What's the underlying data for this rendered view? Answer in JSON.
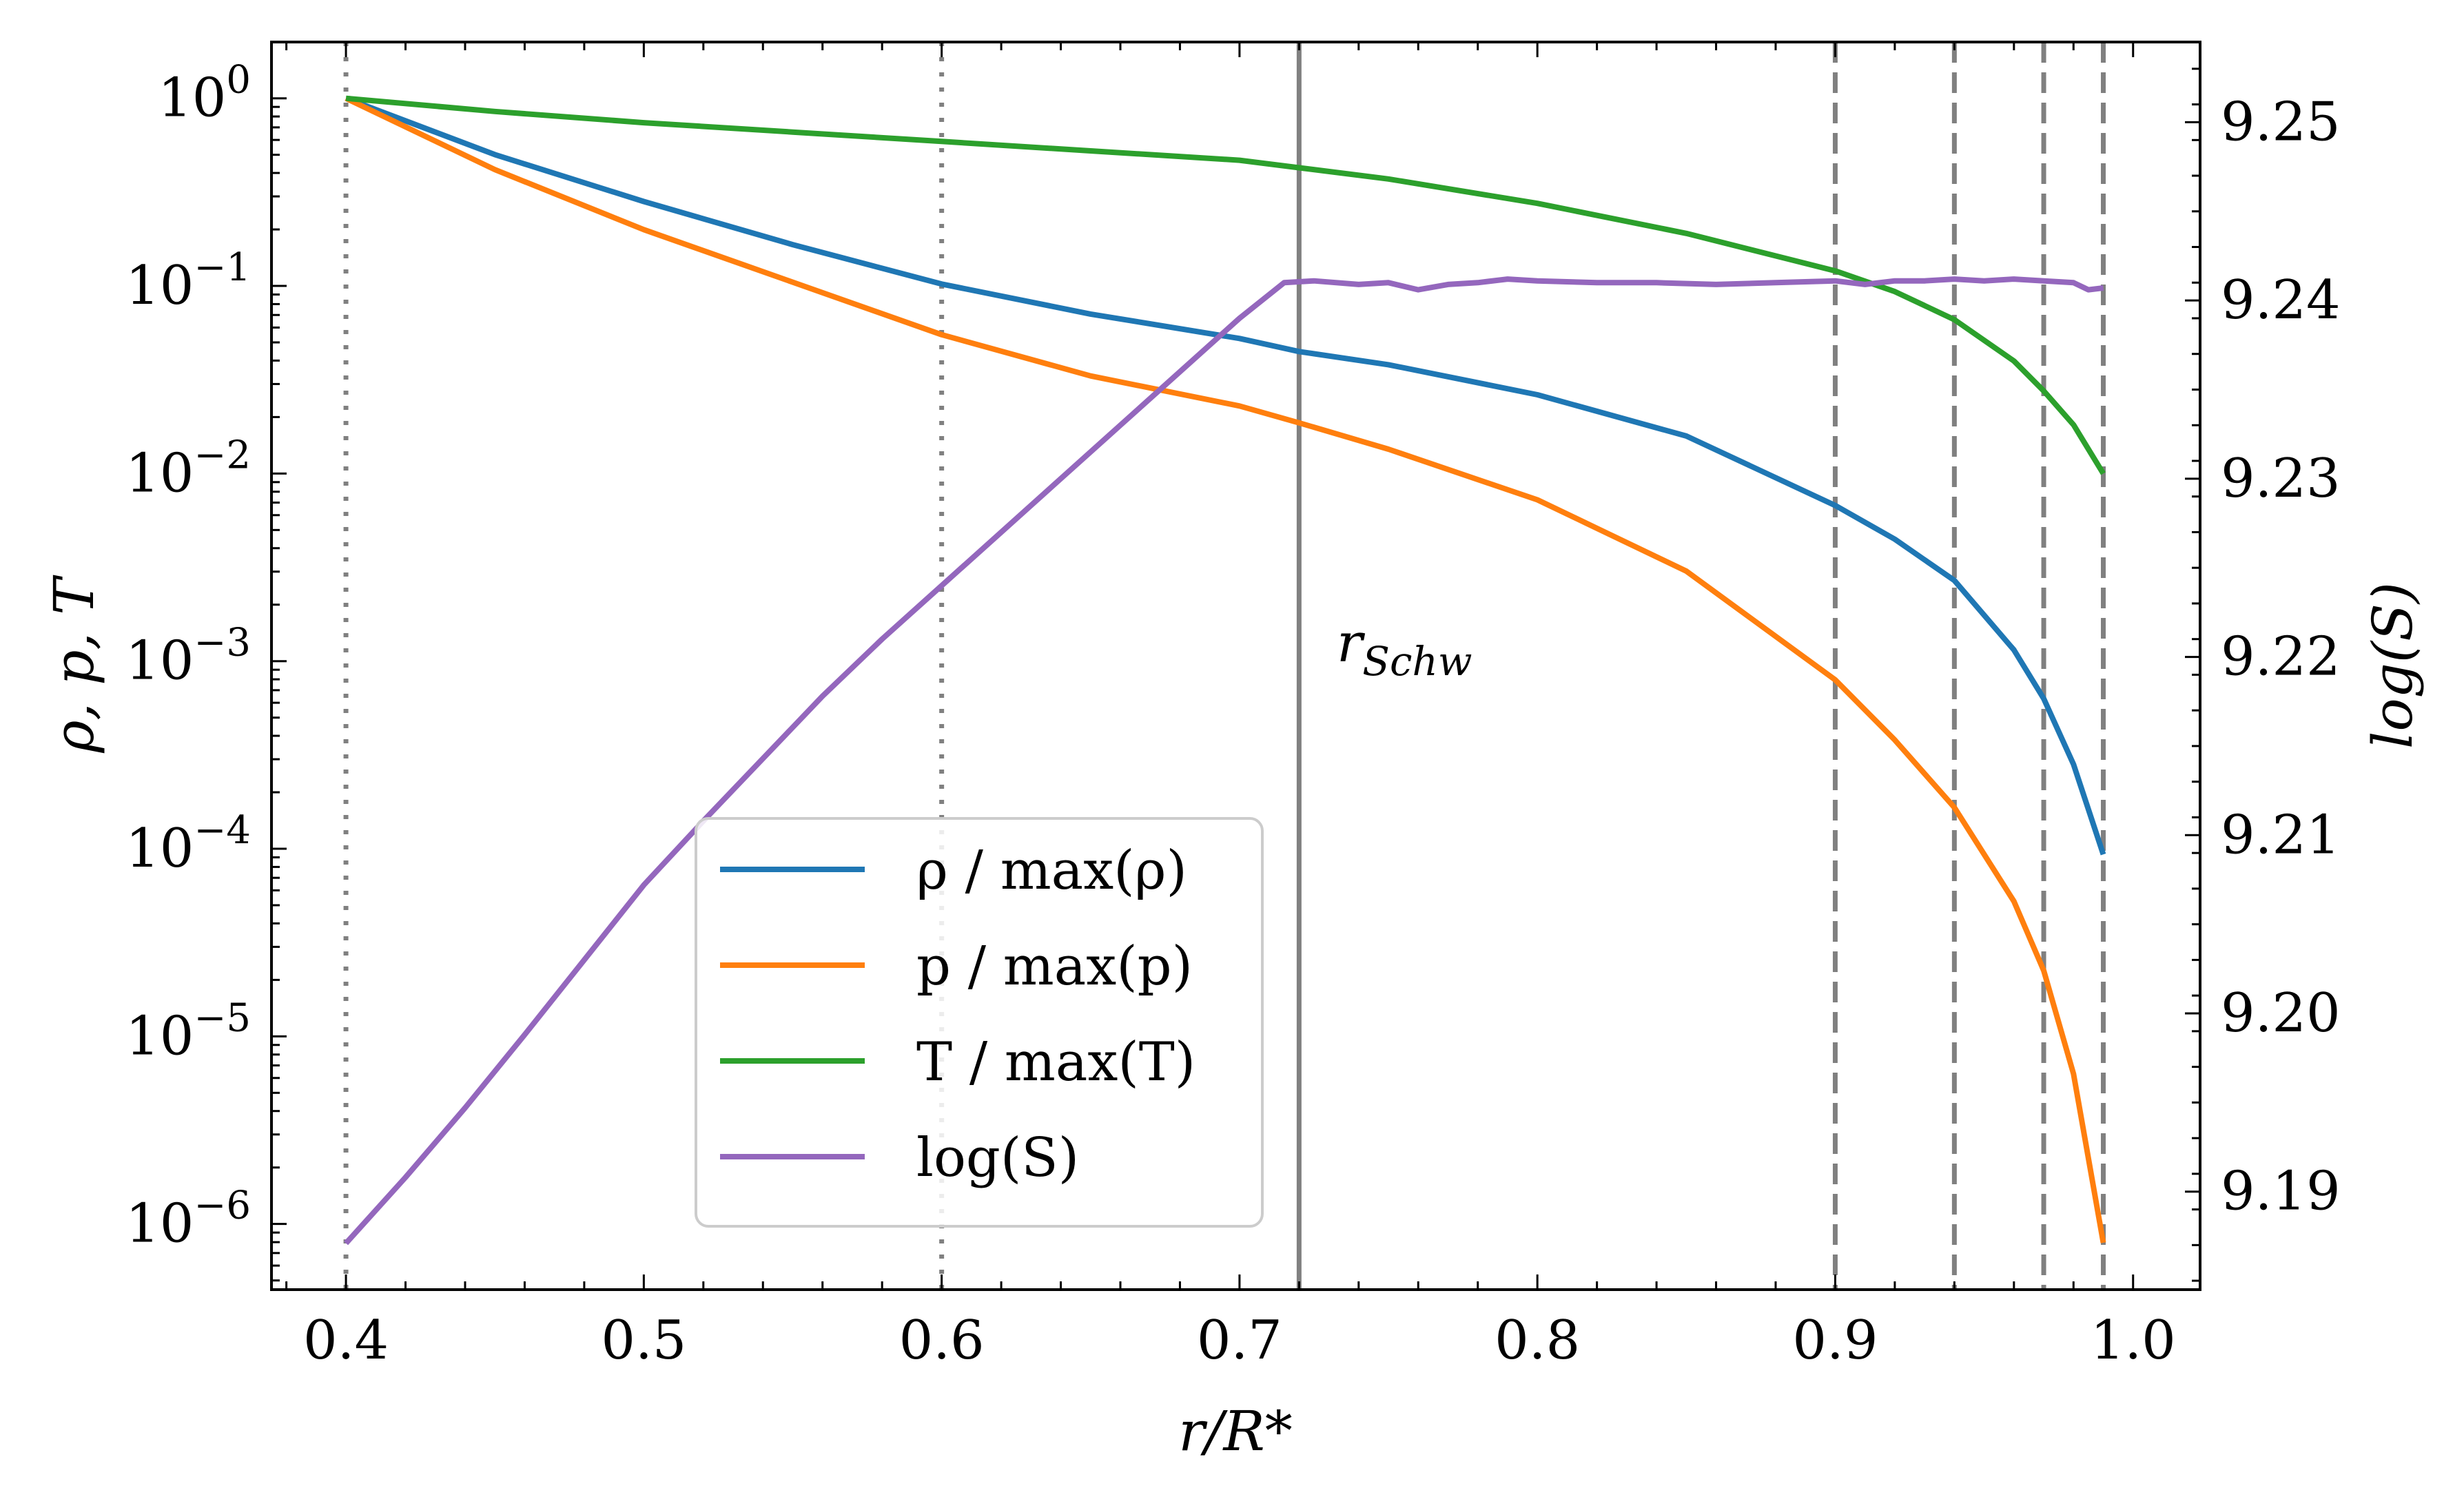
{
  "chart_data": {
    "type": "line",
    "xlabel": "r/R*",
    "ylabel_left": "ρ, p, T",
    "ylabel_right": "log(S)",
    "xlim": [
      0.375,
      1.0225
    ],
    "ylim_left_log10": [
      -6.35,
      0.3
    ],
    "ylim_right": [
      9.1845,
      9.2545
    ],
    "x_ticks": [
      0.4,
      0.5,
      0.6,
      0.7,
      0.8,
      0.9,
      1.0
    ],
    "x_tick_labels": [
      "0.4",
      "0.5",
      "0.6",
      "0.7",
      "0.8",
      "0.9",
      "1.0"
    ],
    "y_left_ticks_exp": [
      0,
      -1,
      -2,
      -3,
      -4,
      -5,
      -6
    ],
    "y_right_ticks": [
      9.19,
      9.2,
      9.21,
      9.22,
      9.23,
      9.24,
      9.25
    ],
    "y_right_tick_labels": [
      "9.19",
      "9.20",
      "9.21",
      "9.22",
      "9.23",
      "9.24",
      "9.25"
    ],
    "vlines": [
      {
        "x": 0.4,
        "style": "dotted"
      },
      {
        "x": 0.6,
        "style": "dotted"
      },
      {
        "x": 0.72,
        "style": "solid"
      },
      {
        "x": 0.9,
        "style": "dashed"
      },
      {
        "x": 0.94,
        "style": "dashed"
      },
      {
        "x": 0.97,
        "style": "dashed"
      },
      {
        "x": 0.99,
        "style": "dashed"
      }
    ],
    "annotation": {
      "text": "r",
      "subscript": "Schw",
      "x": 0.728,
      "y_log10": -3
    },
    "series": [
      {
        "name": "ρ / max(ρ)",
        "axis": "left",
        "color": "#1f77b4",
        "x": [
          0.4,
          0.45,
          0.5,
          0.55,
          0.6,
          0.65,
          0.7,
          0.72,
          0.75,
          0.8,
          0.85,
          0.9,
          0.92,
          0.94,
          0.96,
          0.97,
          0.98,
          0.99
        ],
        "log10_y": [
          0,
          -0.3,
          -0.55,
          -0.78,
          -0.99,
          -1.15,
          -1.28,
          -1.35,
          -1.42,
          -1.58,
          -1.8,
          -2.17,
          -2.35,
          -2.57,
          -2.94,
          -3.2,
          -3.55,
          -4.03
        ]
      },
      {
        "name": "p / max(p)",
        "axis": "left",
        "color": "#ff7f0e",
        "x": [
          0.4,
          0.45,
          0.5,
          0.55,
          0.6,
          0.65,
          0.7,
          0.72,
          0.75,
          0.8,
          0.85,
          0.9,
          0.92,
          0.94,
          0.96,
          0.97,
          0.98,
          0.99
        ],
        "log10_y": [
          0,
          -0.38,
          -0.7,
          -0.98,
          -1.26,
          -1.48,
          -1.64,
          -1.73,
          -1.87,
          -2.14,
          -2.52,
          -3.1,
          -3.42,
          -3.78,
          -4.28,
          -4.65,
          -5.2,
          -6.1
        ]
      },
      {
        "name": "T / max(T)",
        "axis": "left",
        "color": "#2ca02c",
        "x": [
          0.4,
          0.45,
          0.5,
          0.55,
          0.6,
          0.65,
          0.7,
          0.72,
          0.75,
          0.8,
          0.85,
          0.9,
          0.92,
          0.94,
          0.96,
          0.97,
          0.98,
          0.99
        ],
        "log10_y": [
          0,
          -0.07,
          -0.13,
          -0.18,
          -0.23,
          -0.28,
          -0.33,
          -0.37,
          -0.43,
          -0.56,
          -0.72,
          -0.92,
          -1.03,
          -1.18,
          -1.4,
          -1.56,
          -1.74,
          -2.0
        ]
      },
      {
        "name": "log(S)",
        "axis": "right",
        "color": "#9467bd",
        "x": [
          0.4,
          0.42,
          0.44,
          0.46,
          0.48,
          0.5,
          0.52,
          0.54,
          0.56,
          0.58,
          0.6,
          0.62,
          0.64,
          0.66,
          0.68,
          0.7,
          0.715,
          0.725,
          0.74,
          0.75,
          0.76,
          0.77,
          0.78,
          0.79,
          0.8,
          0.82,
          0.84,
          0.86,
          0.88,
          0.9,
          0.91,
          0.92,
          0.93,
          0.94,
          0.95,
          0.96,
          0.97,
          0.98,
          0.985,
          0.99
        ],
        "y": [
          9.1871,
          9.1908,
          9.1947,
          9.1988,
          9.203,
          9.2072,
          9.2108,
          9.2143,
          9.2178,
          9.221,
          9.224,
          9.227,
          9.23,
          9.233,
          9.236,
          9.239,
          9.241,
          9.2411,
          9.2409,
          9.241,
          9.2406,
          9.2409,
          9.241,
          9.2412,
          9.2411,
          9.241,
          9.241,
          9.2409,
          9.241,
          9.2411,
          9.2409,
          9.2411,
          9.2411,
          9.2412,
          9.2411,
          9.2412,
          9.2411,
          9.241,
          9.2406,
          9.2407
        ]
      }
    ]
  }
}
